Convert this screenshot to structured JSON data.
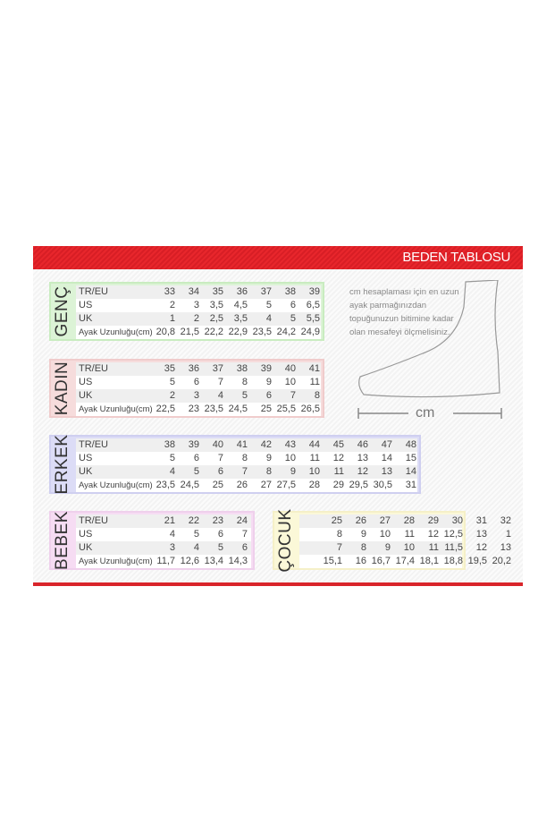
{
  "header": {
    "title": "BEDEN TABLOSU"
  },
  "row_labels": {
    "eu": "TR/EU",
    "us": "US",
    "uk": "UK",
    "cm": "Ayak Uzunluğu(cm)"
  },
  "sections": [
    {
      "key": "genc",
      "title": "GENÇ",
      "color": "#dcf3d6",
      "border": "#c9ecc0",
      "eu": [
        "33",
        "34",
        "35",
        "36",
        "37",
        "38",
        "39"
      ],
      "us": [
        "2",
        "3",
        "3,5",
        "4,5",
        "5",
        "6",
        "6,5"
      ],
      "uk": [
        "1",
        "2",
        "2,5",
        "3,5",
        "4",
        "5",
        "5,5"
      ],
      "cm": [
        "20,8",
        "21,5",
        "22,2",
        "22,9",
        "23,5",
        "24,2",
        "24,9"
      ]
    },
    {
      "key": "kadin",
      "title": "KADIN",
      "color": "#f6dcdc",
      "border": "#f0cccc",
      "eu": [
        "35",
        "36",
        "37",
        "38",
        "39",
        "40",
        "41"
      ],
      "us": [
        "5",
        "6",
        "7",
        "8",
        "9",
        "10",
        "11"
      ],
      "uk": [
        "2",
        "3",
        "4",
        "5",
        "6",
        "7",
        "8"
      ],
      "cm": [
        "22,5",
        "23",
        "23,5",
        "24,5",
        "25",
        "25,5",
        "26,5"
      ]
    },
    {
      "key": "erkek",
      "title": "ERKEK",
      "color": "#dcdcf6",
      "border": "#cfcff0",
      "eu": [
        "38",
        "39",
        "40",
        "41",
        "42",
        "43",
        "44",
        "45",
        "46",
        "47",
        "48"
      ],
      "us": [
        "5",
        "6",
        "7",
        "8",
        "9",
        "10",
        "11",
        "12",
        "13",
        "14",
        "15"
      ],
      "uk": [
        "4",
        "5",
        "6",
        "7",
        "8",
        "9",
        "10",
        "11",
        "12",
        "13",
        "14"
      ],
      "cm": [
        "23,5",
        "24,5",
        "25",
        "26",
        "27",
        "27,5",
        "28",
        "29",
        "29,5",
        "30,5",
        "31"
      ]
    },
    {
      "key": "bebek",
      "title": "BEBEK",
      "color": "#f6dcf3",
      "border": "#efd0ec",
      "eu": [
        "21",
        "22",
        "23",
        "24"
      ],
      "us": [
        "4",
        "5",
        "6",
        "7"
      ],
      "uk": [
        "3",
        "4",
        "5",
        "6"
      ],
      "cm": [
        "11,7",
        "12,6",
        "13,4",
        "14,3"
      ]
    },
    {
      "key": "cocuk",
      "title": "ÇOCUK",
      "color": "#fbf8d8",
      "border": "#f5f0c8",
      "eu": [
        "25",
        "26",
        "27",
        "28",
        "29",
        "30",
        "31",
        "32"
      ],
      "us": [
        "8",
        "9",
        "10",
        "11",
        "12",
        "12,5",
        "13",
        "1"
      ],
      "uk": [
        "7",
        "8",
        "9",
        "10",
        "11",
        "11,5",
        "12",
        "13"
      ],
      "cm": [
        "15,1",
        "16",
        "16,7",
        "17,4",
        "18,1",
        "18,8",
        "19,5",
        "20,2"
      ]
    }
  ],
  "note": "cm hesaplaması için en uzun ayak parmağınızdan topuğunuzun bitimine kadar olan mesafeyi ölçmelisiniz.",
  "measure_label": "cm"
}
